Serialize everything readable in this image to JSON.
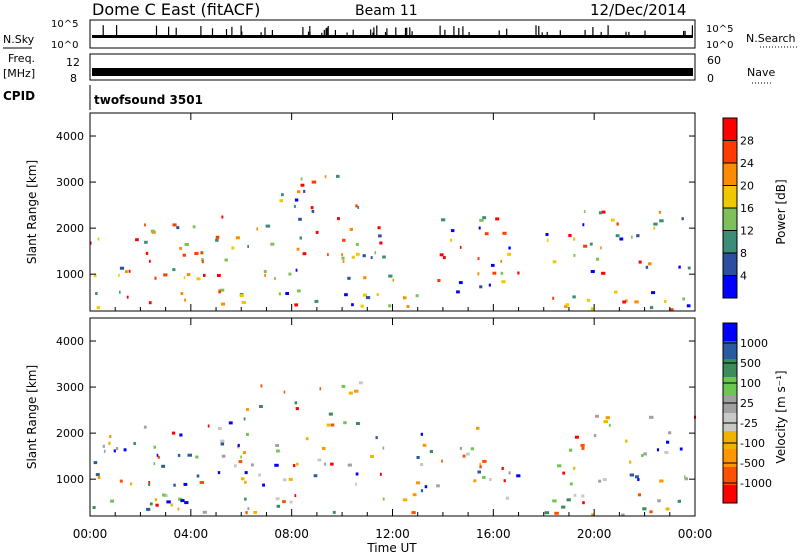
{
  "header": {
    "station": "Dome C East (fitACF)",
    "beam": "Beam 11",
    "date": "12/Dec/2014"
  },
  "strips": {
    "nsky_label": "N.Sky",
    "nsky_ticks": [
      "10^5",
      "10^0"
    ],
    "nsearch_label": "N.Search",
    "nsearch_ticks": [
      "10^5",
      "10^0"
    ],
    "freq_label": "Freq.",
    "freq_unit": "[MHz]",
    "freq_ticks": [
      "12",
      "8"
    ],
    "nave_label": "Nave",
    "nave_ticks": [
      "60",
      "0"
    ],
    "cpid_label": "CPID",
    "cpid_value": "twofsound 3501"
  },
  "xaxis": {
    "label": "Time UT",
    "ticks": [
      "00:00",
      "04:00",
      "08:00",
      "12:00",
      "16:00",
      "20:00",
      "00:00"
    ]
  },
  "colors": {
    "power_scale": [
      "#0000ff",
      "#2d4fa0",
      "#3c8c78",
      "#7fc05a",
      "#f0c800",
      "#ff8c00",
      "#ff3c00",
      "#ff0000"
    ],
    "velocity_scale": [
      "#ff0000",
      "#ff5000",
      "#ff9600",
      "#f0b400",
      "#c8c8c8",
      "#a0a0a0",
      "#6ac850",
      "#3c8c5a",
      "#2a5aa0",
      "#0000ff"
    ]
  },
  "chart_data": [
    {
      "type": "heatmap",
      "title": "",
      "xlabel": "Time UT",
      "ylabel": "Slant Range [km]",
      "xlim": [
        0,
        24
      ],
      "ylim": [
        200,
        4500
      ],
      "yticks": [
        1000,
        2000,
        3000,
        4000
      ],
      "colorbar": {
        "label": "Power [dB]",
        "range": [
          0,
          32
        ],
        "ticks": [
          4,
          8,
          12,
          16,
          20,
          24,
          28
        ]
      }
    },
    {
      "type": "heatmap",
      "title": "",
      "xlabel": "Time UT",
      "ylabel": "Slant Range [km]",
      "xlim": [
        0,
        24
      ],
      "ylim": [
        200,
        4500
      ],
      "yticks": [
        1000,
        2000,
        3000,
        4000
      ],
      "colorbar": {
        "label": "Velocity [m s⁻¹]",
        "ticks": [
          "1000",
          "500",
          "100",
          "25",
          "-25",
          "-100",
          "-500",
          "-1000"
        ]
      }
    }
  ]
}
